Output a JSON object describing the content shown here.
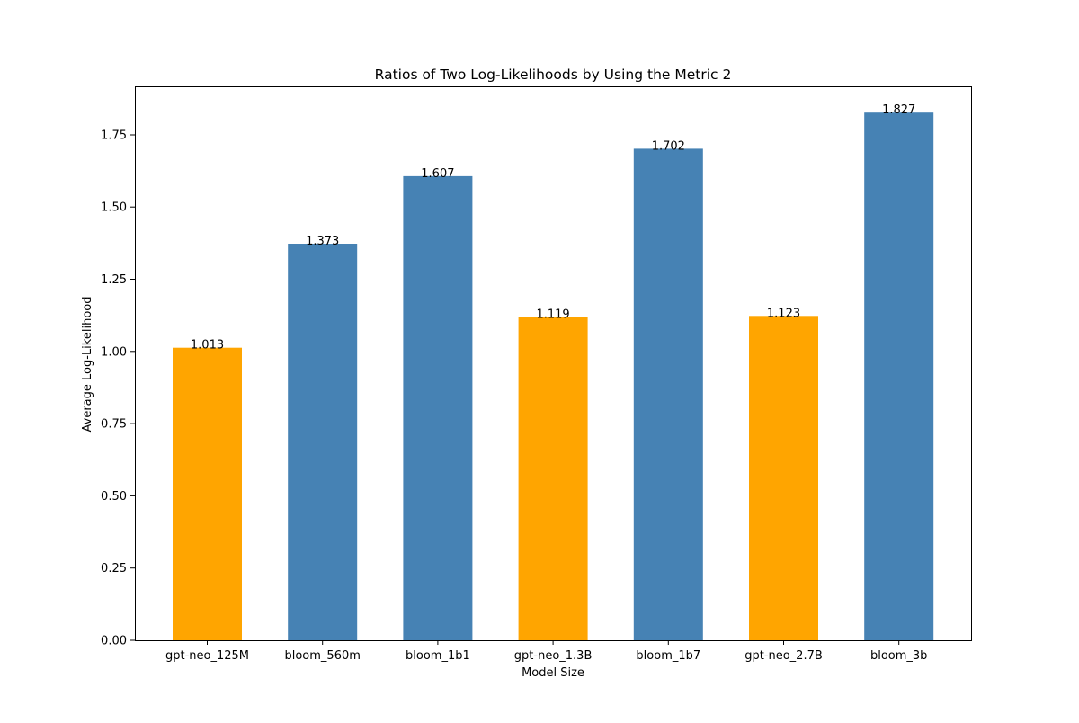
{
  "chart_data": {
    "type": "bar",
    "title": "Ratios of Two Log-Likelihoods by Using the Metric 2",
    "xlabel": "Model Size",
    "ylabel": "Average Log-Likelihood",
    "categories": [
      "gpt-neo_125M",
      "bloom_560m",
      "bloom_1b1",
      "gpt-neo_1.3B",
      "bloom_1b7",
      "gpt-neo_2.7B",
      "bloom_3b"
    ],
    "values": [
      1.013,
      1.373,
      1.607,
      1.119,
      1.702,
      1.123,
      1.827
    ],
    "data_labels": [
      "1.013",
      "1.373",
      "1.607",
      "1.119",
      "1.702",
      "1.123",
      "1.827"
    ],
    "bar_colors": [
      "#FFA500",
      "#4682B4",
      "#4682B4",
      "#FFA500",
      "#4682B4",
      "#FFA500",
      "#4682B4"
    ],
    "yticks": [
      0.0,
      0.25,
      0.5,
      0.75,
      1.0,
      1.25,
      1.5,
      1.75
    ],
    "ytick_labels": [
      "0.00",
      "0.25",
      "0.50",
      "0.75",
      "1.00",
      "1.25",
      "1.50",
      "1.75"
    ],
    "ylim": [
      0,
      1.918
    ],
    "grid": false,
    "legend": "none"
  }
}
